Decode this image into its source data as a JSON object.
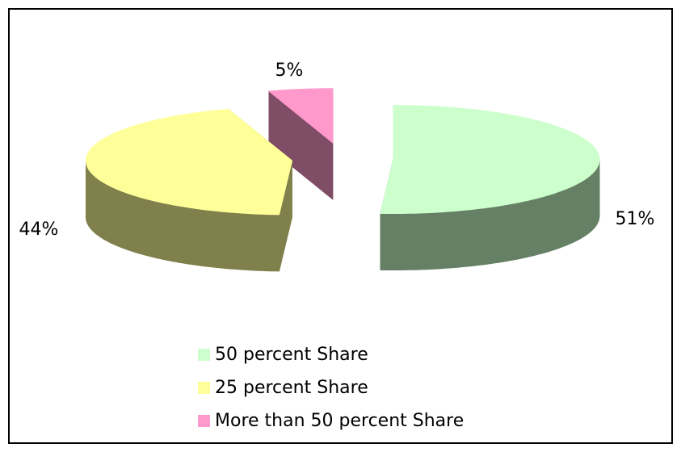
{
  "chart_data": {
    "type": "pie",
    "categories": [
      "50 percent Share",
      "25 percent Share",
      "More than 50 percent Share"
    ],
    "values": [
      51,
      44,
      5
    ],
    "value_labels": [
      "51%",
      "44%",
      "5%"
    ],
    "colors": [
      "#ccffcc",
      "#ffff99",
      "#ff99cc"
    ],
    "legend": "bottom"
  }
}
